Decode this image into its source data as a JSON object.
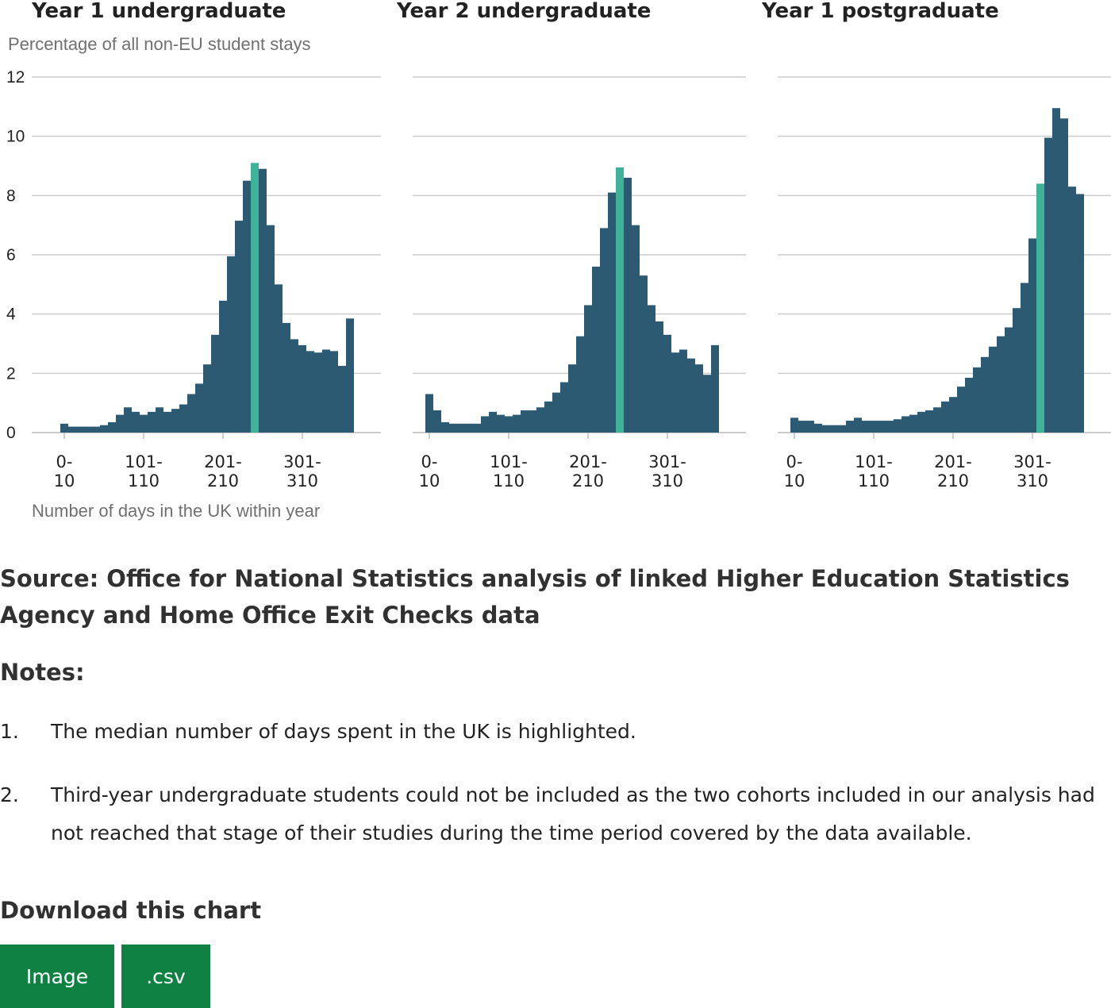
{
  "chart_data": {
    "type": "bar",
    "ylabel": "Percentage of all non-EU student stays",
    "xlabel": "Number of days in the UK within year",
    "ylim": [
      0,
      12
    ],
    "yticks": [
      0,
      2,
      4,
      6,
      8,
      10,
      12
    ],
    "xtick_labels": [
      [
        "0-",
        "10"
      ],
      [
        "101-",
        "110"
      ],
      [
        "201-",
        "210"
      ],
      [
        "301-",
        "310"
      ]
    ],
    "grid": true,
    "colors": {
      "bar": "#2c5a72",
      "median": "#3fb39a",
      "grid": "#cccccc",
      "axis": "#bbbbbb"
    },
    "bin_width_days": 10,
    "panels": [
      {
        "title": "Year 1 undergraduate",
        "median_index": 24,
        "values": [
          0.3,
          0.2,
          0.2,
          0.2,
          0.2,
          0.25,
          0.35,
          0.6,
          0.85,
          0.7,
          0.6,
          0.7,
          0.85,
          0.7,
          0.8,
          0.95,
          1.3,
          1.65,
          2.3,
          3.3,
          4.45,
          5.95,
          7.15,
          8.5,
          9.1,
          8.9,
          7.0,
          5.0,
          3.7,
          3.15,
          2.95,
          2.75,
          2.7,
          2.8,
          2.75,
          2.25,
          3.85
        ]
      },
      {
        "title": "Year 2 undergraduate",
        "median_index": 24,
        "values": [
          1.3,
          0.75,
          0.35,
          0.3,
          0.3,
          0.3,
          0.3,
          0.55,
          0.7,
          0.6,
          0.55,
          0.6,
          0.75,
          0.75,
          0.85,
          1.05,
          1.35,
          1.7,
          2.3,
          3.25,
          4.3,
          5.6,
          6.9,
          8.1,
          8.95,
          8.6,
          7.0,
          5.3,
          4.3,
          3.75,
          3.3,
          2.7,
          2.8,
          2.5,
          2.3,
          1.95,
          2.95
        ]
      },
      {
        "title": "Year 1 postgraduate",
        "median_index": 31,
        "values": [
          0.5,
          0.4,
          0.4,
          0.3,
          0.25,
          0.25,
          0.25,
          0.4,
          0.5,
          0.4,
          0.4,
          0.4,
          0.4,
          0.45,
          0.55,
          0.6,
          0.7,
          0.75,
          0.85,
          1.05,
          1.2,
          1.55,
          1.85,
          2.2,
          2.55,
          2.9,
          3.25,
          3.55,
          4.2,
          5.05,
          6.55,
          8.4,
          9.95,
          10.95,
          10.6,
          8.3,
          8.05
        ]
      }
    ]
  },
  "source": "Source: Office for National Statistics analysis of linked Higher Education Statistics Agency and Home Office Exit Checks data",
  "notes": {
    "title": "Notes:",
    "items": [
      {
        "num": "1.",
        "text": "The median number of days spent in the UK is highlighted."
      },
      {
        "num": "2.",
        "text": "Third-year undergraduate students could not be included as the two cohorts included in our analysis had not reached that stage of their studies during the time period covered by the data available."
      }
    ]
  },
  "download": {
    "title": "Download this chart",
    "image_label": "Image",
    "csv_label": ".csv"
  }
}
